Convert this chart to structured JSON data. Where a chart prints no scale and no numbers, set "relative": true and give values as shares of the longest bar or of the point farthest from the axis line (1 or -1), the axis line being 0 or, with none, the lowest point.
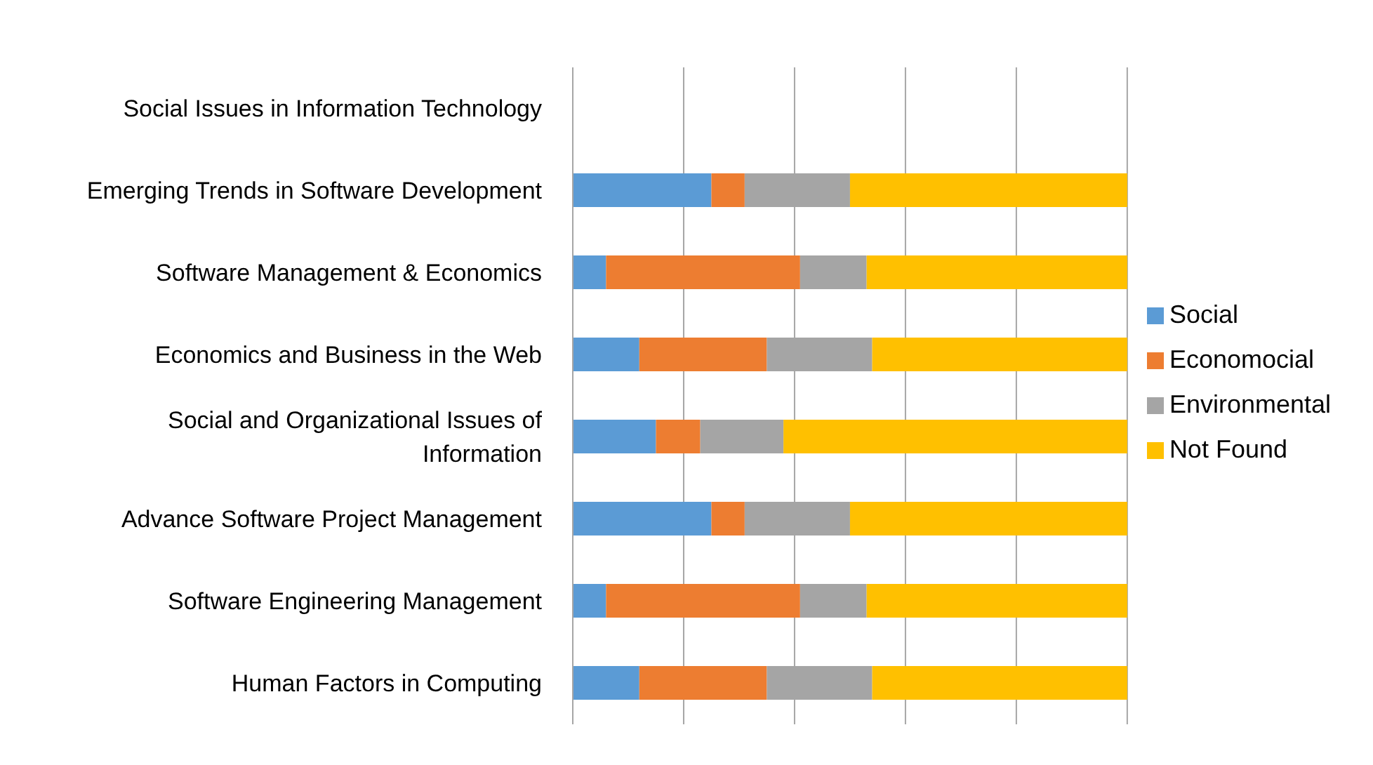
{
  "chart_data": {
    "type": "bar",
    "orientation": "horizontal",
    "stacked": true,
    "relative": true,
    "grid": "x",
    "legend": "right",
    "categories": [
      "Social Issues in Information Technology",
      "Emerging Trends in Software Development",
      "Software Management & Economics",
      "Economics and Business in the Web",
      "Social and Organizational Issues of Information",
      "Advance Software Project Management",
      "Software Engineering Management",
      "Human Factors in Computing"
    ],
    "series": [
      {
        "name": "Social",
        "color": "#5b9bd5",
        "values": [
          null,
          0.25,
          0.06,
          0.12,
          0.15,
          0.25,
          0.06,
          0.12
        ]
      },
      {
        "name": "Economocial",
        "color": "#ed7d31",
        "values": [
          null,
          0.06,
          0.35,
          0.23,
          0.08,
          0.06,
          0.35,
          0.23
        ]
      },
      {
        "name": "Environmental",
        "color": "#a5a5a5",
        "values": [
          null,
          0.19,
          0.12,
          0.19,
          0.15,
          0.19,
          0.12,
          0.19
        ]
      },
      {
        "name": "Not Found",
        "color": "#ffc000",
        "values": [
          null,
          0.5,
          0.47,
          0.46,
          0.62,
          0.5,
          0.47,
          0.46
        ]
      }
    ]
  }
}
